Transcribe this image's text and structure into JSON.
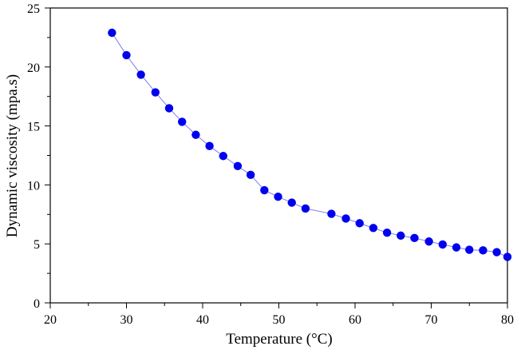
{
  "chart_data": {
    "type": "line",
    "title": "",
    "xlabel": "Temperature (°C)",
    "ylabel": "Dynamic viscosity (mpa.s)",
    "xlim": [
      20,
      80
    ],
    "ylim": [
      0,
      25
    ],
    "x_ticks": [
      20,
      30,
      40,
      50,
      60,
      70,
      80
    ],
    "y_ticks": [
      0,
      5,
      10,
      15,
      20,
      25
    ],
    "x_minor_step": 5,
    "y_minor_step": 2.5,
    "grid": false,
    "legend": "none",
    "marker": "circle",
    "colors": {
      "marker": "#0000ee",
      "line": "#7b7bf0"
    },
    "series": [
      {
        "x": [
          28.1,
          30.0,
          31.9,
          33.8,
          35.6,
          37.3,
          39.1,
          40.9,
          42.7,
          44.6,
          46.3,
          48.1,
          49.9,
          51.7,
          53.5,
          56.9,
          58.8,
          60.6,
          62.4,
          64.2,
          66.0,
          67.8,
          69.7,
          71.5,
          73.3,
          75.0,
          76.8,
          78.6,
          80.0
        ],
        "y": [
          22.9,
          21.0,
          19.35,
          17.85,
          16.5,
          15.35,
          14.25,
          13.3,
          12.45,
          11.6,
          10.85,
          9.55,
          9.0,
          8.5,
          8.0,
          7.55,
          7.15,
          6.75,
          6.35,
          5.95,
          5.7,
          5.5,
          5.2,
          4.95,
          4.7,
          4.5,
          4.45,
          4.3,
          3.9
        ]
      }
    ]
  }
}
